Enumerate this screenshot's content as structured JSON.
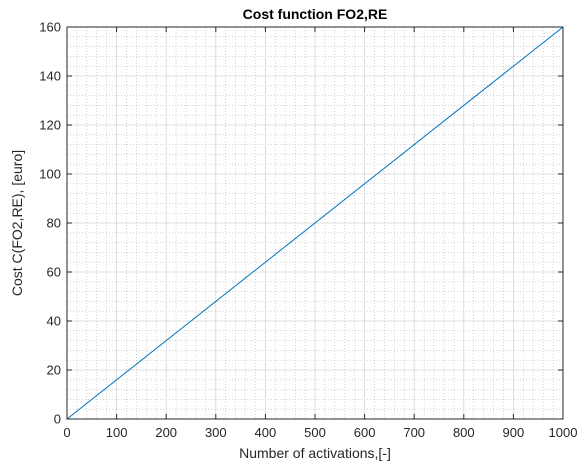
{
  "chart_data": {
    "type": "line",
    "title": "Cost function FO2,RE",
    "xlabel": "Number of activations,[-]",
    "ylabel": "Cost C(FO2,RE), [euro]",
    "xlim": [
      0,
      1000
    ],
    "ylim": [
      0,
      160
    ],
    "xticks": [
      0,
      100,
      200,
      300,
      400,
      500,
      600,
      700,
      800,
      900,
      1000
    ],
    "yticks": [
      0,
      20,
      40,
      60,
      80,
      100,
      120,
      140,
      160
    ],
    "grid": true,
    "minor_grid": true,
    "series": [
      {
        "x": [
          0,
          1000
        ],
        "y": [
          0,
          160
        ],
        "color": "#0072bd"
      }
    ]
  }
}
